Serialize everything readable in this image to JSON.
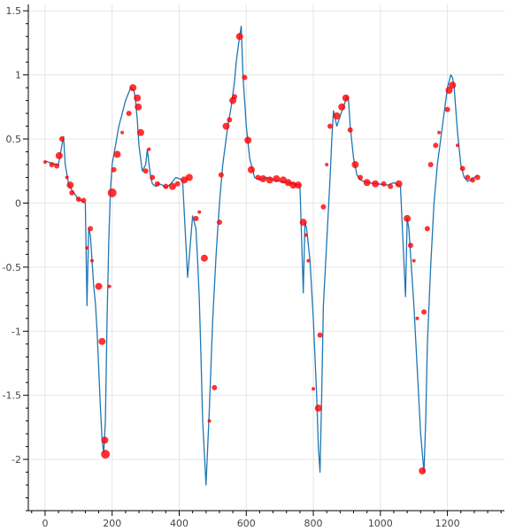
{
  "chart_data": {
    "type": "line",
    "title": "",
    "xlabel": "",
    "ylabel": "",
    "xlim": [
      -50,
      1370
    ],
    "ylim": [
      -2.4,
      1.55
    ],
    "x_ticks": [
      0,
      200,
      400,
      600,
      800,
      1000,
      1200
    ],
    "x_tick_labels": [
      "0",
      "200",
      "400",
      "600",
      "800",
      "1000",
      "1200"
    ],
    "y_ticks": [
      1.5,
      1,
      0.5,
      0,
      -0.5,
      -1,
      -1.5,
      -2
    ],
    "y_tick_labels": [
      "1.5",
      "1",
      "0.5",
      "0",
      "-0.5",
      "-1",
      "-1.5",
      "-2"
    ],
    "grid": true,
    "colors": {
      "line": "#1f77b4",
      "marker": "#ff0000"
    },
    "series": [
      {
        "kind": "line",
        "x": [
          0,
          20,
          40,
          50,
          55,
          60,
          70,
          80,
          100,
          120,
          125,
          130,
          135,
          140,
          145,
          150,
          155,
          160,
          165,
          170,
          175,
          180,
          185,
          190,
          195,
          200,
          210,
          220,
          240,
          255,
          265,
          270,
          275,
          280,
          290,
          300,
          305,
          310,
          315,
          320,
          330,
          340,
          350,
          360,
          375,
          390,
          410,
          425,
          440,
          450,
          455,
          460,
          465,
          470,
          480,
          490,
          500,
          510,
          520,
          530,
          545,
          555,
          560,
          565,
          570,
          580,
          585,
          590,
          600,
          610,
          625,
          640,
          660,
          680,
          700,
          720,
          740,
          760,
          770,
          775,
          780,
          790,
          800,
          810,
          815,
          820,
          825,
          830,
          840,
          850,
          855,
          860,
          870,
          880,
          890,
          900,
          905,
          910,
          920,
          930,
          940,
          960,
          990,
          1020,
          1040,
          1060,
          1075,
          1080,
          1085,
          1090,
          1100,
          1110,
          1120,
          1130,
          1135,
          1140,
          1150,
          1160,
          1170,
          1180,
          1190,
          1200,
          1210,
          1215,
          1220,
          1230,
          1240,
          1250,
          1260,
          1270,
          1280,
          1290
        ],
        "y": [
          0.33,
          0.31,
          0.3,
          0.45,
          0.52,
          0.3,
          0.15,
          0.1,
          0.03,
          0.0,
          -0.8,
          -0.2,
          -0.25,
          -0.45,
          -0.65,
          -0.78,
          -1.0,
          -1.3,
          -1.6,
          -1.85,
          -1.95,
          -1.7,
          -0.9,
          -0.3,
          0.1,
          0.3,
          0.45,
          0.6,
          0.8,
          0.9,
          0.88,
          0.8,
          0.65,
          0.45,
          0.25,
          0.3,
          0.42,
          0.3,
          0.2,
          0.15,
          0.13,
          0.15,
          0.14,
          0.12,
          0.15,
          0.2,
          0.18,
          -0.58,
          -0.1,
          -0.2,
          -0.45,
          -0.75,
          -1.2,
          -1.7,
          -2.2,
          -1.6,
          -0.9,
          -0.4,
          0.0,
          0.3,
          0.6,
          0.75,
          0.85,
          0.95,
          1.1,
          1.3,
          1.38,
          1.0,
          0.6,
          0.35,
          0.2,
          0.18,
          0.2,
          0.18,
          0.17,
          0.16,
          0.15,
          0.14,
          -0.7,
          -0.15,
          -0.2,
          -0.45,
          -0.9,
          -1.5,
          -1.9,
          -2.1,
          -1.5,
          -0.8,
          -0.3,
          0.2,
          0.5,
          0.72,
          0.6,
          0.68,
          0.75,
          0.83,
          0.8,
          0.6,
          0.35,
          0.22,
          0.18,
          0.16,
          0.15,
          0.14,
          0.16,
          0.13,
          -0.73,
          -0.12,
          -0.2,
          -0.4,
          -0.8,
          -1.3,
          -1.8,
          -2.1,
          -1.7,
          -1.1,
          -0.5,
          0.0,
          0.3,
          0.5,
          0.7,
          0.9,
          1.0,
          0.98,
          0.9,
          0.55,
          0.3,
          0.2,
          0.17,
          0.18,
          0.2,
          0.22
        ]
      },
      {
        "kind": "scatter",
        "points": [
          {
            "x": 0,
            "y": 0.32,
            "r": 2
          },
          {
            "x": 20,
            "y": 0.3,
            "r": 3
          },
          {
            "x": 35,
            "y": 0.29,
            "r": 3
          },
          {
            "x": 42,
            "y": 0.37,
            "r": 4
          },
          {
            "x": 50,
            "y": 0.5,
            "r": 3
          },
          {
            "x": 65,
            "y": 0.2,
            "r": 2
          },
          {
            "x": 75,
            "y": 0.14,
            "r": 4
          },
          {
            "x": 80,
            "y": 0.08,
            "r": 3
          },
          {
            "x": 100,
            "y": 0.03,
            "r": 3
          },
          {
            "x": 115,
            "y": 0.02,
            "r": 3
          },
          {
            "x": 125,
            "y": -0.35,
            "r": 2
          },
          {
            "x": 135,
            "y": -0.2,
            "r": 3
          },
          {
            "x": 140,
            "y": -0.45,
            "r": 2
          },
          {
            "x": 160,
            "y": -0.65,
            "r": 4
          },
          {
            "x": 170,
            "y": -1.08,
            "r": 4
          },
          {
            "x": 178,
            "y": -1.85,
            "r": 4
          },
          {
            "x": 180,
            "y": -1.96,
            "r": 5
          },
          {
            "x": 192,
            "y": -0.65,
            "r": 2
          },
          {
            "x": 200,
            "y": 0.08,
            "r": 5
          },
          {
            "x": 205,
            "y": 0.26,
            "r": 3
          },
          {
            "x": 215,
            "y": 0.38,
            "r": 4
          },
          {
            "x": 230,
            "y": 0.55,
            "r": 2
          },
          {
            "x": 250,
            "y": 0.7,
            "r": 3
          },
          {
            "x": 262,
            "y": 0.9,
            "r": 4
          },
          {
            "x": 275,
            "y": 0.82,
            "r": 4
          },
          {
            "x": 278,
            "y": 0.75,
            "r": 4
          },
          {
            "x": 285,
            "y": 0.55,
            "r": 4
          },
          {
            "x": 300,
            "y": 0.25,
            "r": 3
          },
          {
            "x": 310,
            "y": 0.42,
            "r": 2
          },
          {
            "x": 320,
            "y": 0.2,
            "r": 3
          },
          {
            "x": 335,
            "y": 0.15,
            "r": 3
          },
          {
            "x": 360,
            "y": 0.13,
            "r": 3
          },
          {
            "x": 380,
            "y": 0.13,
            "r": 4
          },
          {
            "x": 395,
            "y": 0.15,
            "r": 3
          },
          {
            "x": 415,
            "y": 0.18,
            "r": 4
          },
          {
            "x": 430,
            "y": 0.2,
            "r": 4
          },
          {
            "x": 450,
            "y": -0.12,
            "r": 3
          },
          {
            "x": 460,
            "y": -0.07,
            "r": 2
          },
          {
            "x": 475,
            "y": -0.43,
            "r": 4
          },
          {
            "x": 490,
            "y": -1.7,
            "r": 2
          },
          {
            "x": 505,
            "y": -1.44,
            "r": 3
          },
          {
            "x": 520,
            "y": -0.15,
            "r": 3
          },
          {
            "x": 525,
            "y": 0.22,
            "r": 3
          },
          {
            "x": 540,
            "y": 0.6,
            "r": 4
          },
          {
            "x": 550,
            "y": 0.65,
            "r": 3
          },
          {
            "x": 560,
            "y": 0.8,
            "r": 4
          },
          {
            "x": 565,
            "y": 0.83,
            "r": 3
          },
          {
            "x": 580,
            "y": 1.3,
            "r": 4
          },
          {
            "x": 595,
            "y": 0.98,
            "r": 3
          },
          {
            "x": 605,
            "y": 0.49,
            "r": 4
          },
          {
            "x": 615,
            "y": 0.26,
            "r": 4
          },
          {
            "x": 635,
            "y": 0.2,
            "r": 3
          },
          {
            "x": 650,
            "y": 0.19,
            "r": 4
          },
          {
            "x": 670,
            "y": 0.18,
            "r": 4
          },
          {
            "x": 690,
            "y": 0.19,
            "r": 4
          },
          {
            "x": 710,
            "y": 0.18,
            "r": 4
          },
          {
            "x": 725,
            "y": 0.16,
            "r": 4
          },
          {
            "x": 740,
            "y": 0.14,
            "r": 4
          },
          {
            "x": 755,
            "y": 0.14,
            "r": 4
          },
          {
            "x": 770,
            "y": -0.15,
            "r": 4
          },
          {
            "x": 778,
            "y": -0.25,
            "r": 2
          },
          {
            "x": 785,
            "y": -0.45,
            "r": 2
          },
          {
            "x": 800,
            "y": -1.45,
            "r": 2
          },
          {
            "x": 815,
            "y": -1.6,
            "r": 4
          },
          {
            "x": 820,
            "y": -1.03,
            "r": 3
          },
          {
            "x": 830,
            "y": -0.03,
            "r": 3
          },
          {
            "x": 840,
            "y": 0.3,
            "r": 2
          },
          {
            "x": 850,
            "y": 0.6,
            "r": 3
          },
          {
            "x": 870,
            "y": 0.68,
            "r": 4
          },
          {
            "x": 885,
            "y": 0.75,
            "r": 4
          },
          {
            "x": 897,
            "y": 0.82,
            "r": 4
          },
          {
            "x": 910,
            "y": 0.57,
            "r": 3
          },
          {
            "x": 925,
            "y": 0.3,
            "r": 4
          },
          {
            "x": 940,
            "y": 0.2,
            "r": 3
          },
          {
            "x": 960,
            "y": 0.16,
            "r": 4
          },
          {
            "x": 985,
            "y": 0.15,
            "r": 4
          },
          {
            "x": 1010,
            "y": 0.15,
            "r": 3
          },
          {
            "x": 1030,
            "y": 0.13,
            "r": 3
          },
          {
            "x": 1055,
            "y": 0.15,
            "r": 4
          },
          {
            "x": 1080,
            "y": -0.12,
            "r": 4
          },
          {
            "x": 1090,
            "y": -0.33,
            "r": 3
          },
          {
            "x": 1100,
            "y": -0.45,
            "r": 2
          },
          {
            "x": 1110,
            "y": -0.9,
            "r": 2
          },
          {
            "x": 1125,
            "y": -2.09,
            "r": 4
          },
          {
            "x": 1130,
            "y": -0.85,
            "r": 3
          },
          {
            "x": 1140,
            "y": -0.2,
            "r": 3
          },
          {
            "x": 1150,
            "y": 0.3,
            "r": 3
          },
          {
            "x": 1165,
            "y": 0.45,
            "r": 3
          },
          {
            "x": 1175,
            "y": 0.55,
            "r": 2
          },
          {
            "x": 1200,
            "y": 0.73,
            "r": 3
          },
          {
            "x": 1205,
            "y": 0.88,
            "r": 4
          },
          {
            "x": 1215,
            "y": 0.92,
            "r": 4
          },
          {
            "x": 1230,
            "y": 0.45,
            "r": 2
          },
          {
            "x": 1245,
            "y": 0.27,
            "r": 3
          },
          {
            "x": 1260,
            "y": 0.2,
            "r": 3
          },
          {
            "x": 1275,
            "y": 0.18,
            "r": 3
          },
          {
            "x": 1290,
            "y": 0.2,
            "r": 3
          }
        ]
      }
    ]
  }
}
